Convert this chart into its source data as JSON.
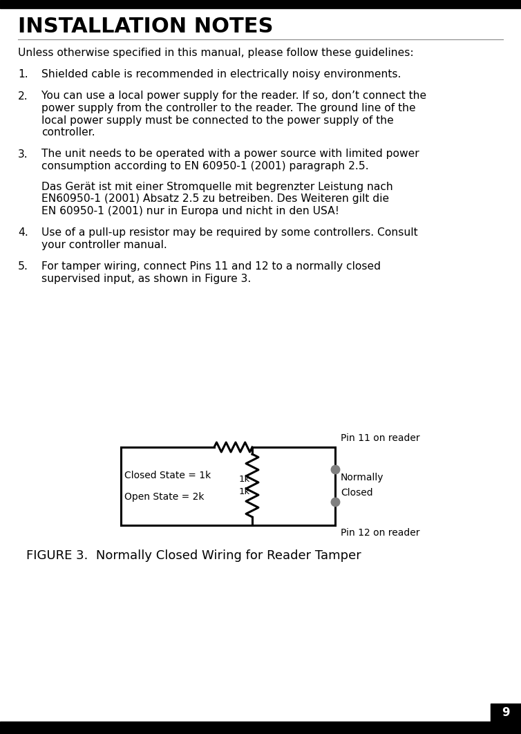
{
  "title": "INSTALLATION NOTES",
  "page_number": "9",
  "bg_color": "#ffffff",
  "text_color": "#000000",
  "title_fontsize": 22,
  "body_fontsize": 11.2,
  "intro_line": "Unless otherwise specified in this manual, please follow these guidelines:",
  "items": [
    {
      "num": "1.",
      "text": "Shielded cable is recommended in electrically noisy environments."
    },
    {
      "num": "2.",
      "text": "You can use a local power supply for the reader. If so, don’t connect the\npower supply from the controller to the reader. The ground line of the\nlocal power supply must be connected to the power supply of the\ncontroller."
    },
    {
      "num": "3.",
      "text": "The unit needs to be operated with a power source with limited power\nconsumption according to EN 60950-1 (2001) paragraph 2.5.\n\nDas Gerät ist mit einer Stromquelle mit begrenzter Leistung nach\nEN60950-1 (2001) Absatz 2.5 zu betreiben. Des Weiteren gilt die\nEN 60950-1 (2001) nur in Europa und nicht in den USA!"
    },
    {
      "num": "4.",
      "text": "Use of a pull-up resistor may be required by some controllers. Consult\nyour controller manual."
    },
    {
      "num": "5.",
      "text": "For tamper wiring, connect Pins 11 and 12 to a normally closed\nsupervised input, as shown in Figure 3."
    }
  ],
  "figure_caption": "FIGURE 3.  Normally Closed Wiring for Reader Tamper",
  "figure_caption_fontsize": 13,
  "top_bar_color": "#000000",
  "bottom_bar_color": "#000000",
  "line_color": "#888888"
}
